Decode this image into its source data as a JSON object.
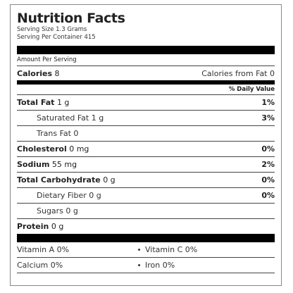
{
  "title": "Nutrition Facts",
  "serving_size": "Serving Size 1.3 Grams",
  "servings_per_container": "Serving Per Container 415",
  "amount_per_serving": "Amount Per Serving",
  "calories": {
    "label": "Calories",
    "value": "8",
    "from_fat": "Calories from Fat 0"
  },
  "daily_value_header": "% Daily Value",
  "nutrients": [
    {
      "label": "Total Fat",
      "amount": "1 g",
      "dv": "1%",
      "bold": true
    },
    {
      "label": "Saturated Fat 1 g",
      "amount": "",
      "dv": "3%",
      "bold": false
    },
    {
      "label": "Trans Fat 0",
      "amount": "",
      "dv": "",
      "bold": false
    },
    {
      "label": "Cholesterol",
      "amount": "0 mg",
      "dv": "0%",
      "bold": true
    },
    {
      "label": "Sodium",
      "amount": "55 mg",
      "dv": "2%",
      "bold": true
    },
    {
      "label": "Total Carbohydrate",
      "amount": "0 g",
      "dv": "0%",
      "bold": true
    },
    {
      "label": "Dietary Fiber 0 g",
      "amount": "",
      "dv": "0%",
      "bold": false
    },
    {
      "label": "Sugars 0 g",
      "amount": "",
      "dv": "",
      "bold": false
    },
    {
      "label": "Protein",
      "amount": "0 g",
      "dv": "",
      "bold": true
    }
  ],
  "vitamins": [
    {
      "left": "Vitamin A 0%",
      "right": "Vitamin C 0%"
    },
    {
      "left": "Calcium 0%",
      "right": "Iron 0%"
    }
  ]
}
